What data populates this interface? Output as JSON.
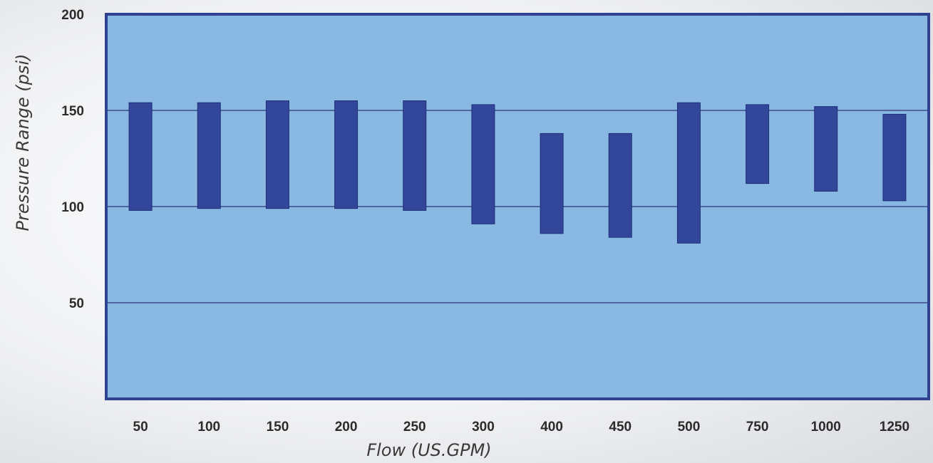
{
  "chart_data": {
    "type": "bar",
    "subtype": "floating-range",
    "title": "",
    "xlabel": "Flow (US.GPM)",
    "ylabel": "Pressure Range (psi)",
    "categories": [
      "50",
      "100",
      "150",
      "200",
      "250",
      "300",
      "400",
      "450",
      "500",
      "750",
      "1000",
      "1250"
    ],
    "series": [
      {
        "low": [
          98,
          99,
          99,
          99,
          98,
          91,
          86,
          84,
          81,
          112,
          108,
          103
        ],
        "high": [
          154,
          154,
          155,
          155,
          155,
          153,
          138,
          138,
          154,
          153,
          152,
          148
        ]
      }
    ],
    "ylim": [
      0,
      200
    ],
    "yticks": [
      "50",
      "100",
      "150",
      "200"
    ],
    "ytick_values": [
      50,
      100,
      150,
      200
    ],
    "grid": true,
    "legend": "none",
    "colors": {
      "plot_background": "#89b8e2",
      "bar_fill": "#33479a",
      "bar_stroke": "#1f2f78",
      "gridline": "#3b4b8c",
      "frame": "#2f4191"
    }
  }
}
